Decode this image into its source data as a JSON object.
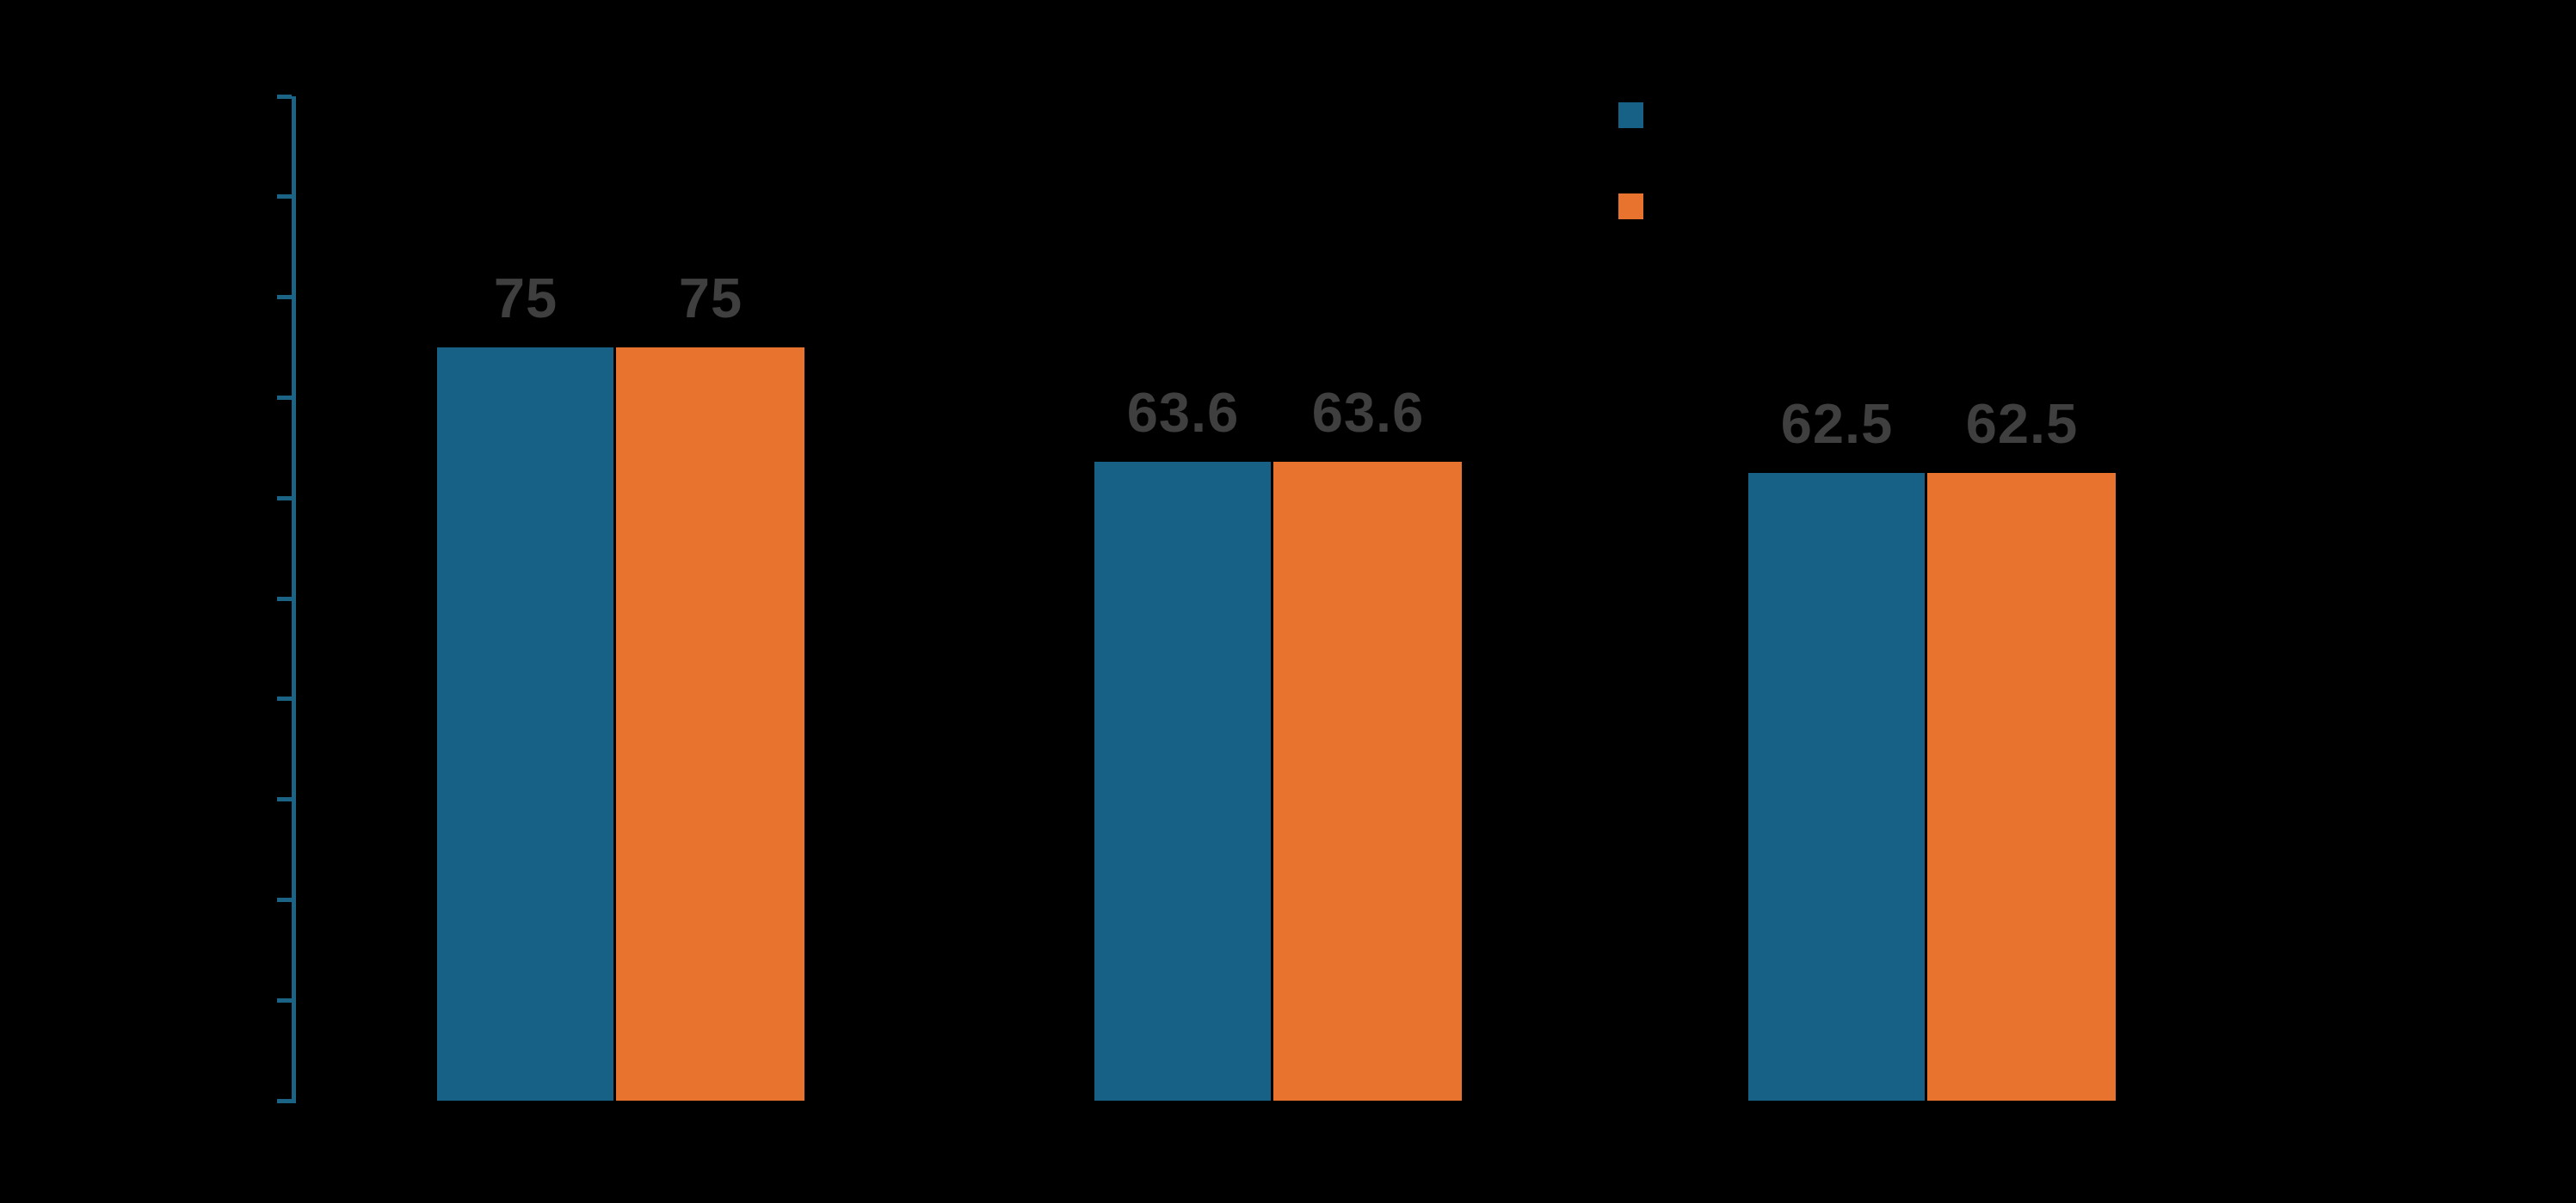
{
  "background": "#000000",
  "chart_data": {
    "type": "bar",
    "title": "",
    "categories": [
      "",
      "",
      ""
    ],
    "series": [
      {
        "name": "",
        "color": "#176086",
        "values": [
          75,
          63.6,
          62.5
        ]
      },
      {
        "name": "",
        "color": "#E7732F",
        "values": [
          75,
          63.6,
          62.5
        ]
      }
    ],
    "data_labels": [
      [
        "75",
        "63.6",
        "62.5"
      ],
      [
        "75",
        "63.6",
        "62.5"
      ]
    ],
    "data_label_color": "#3F3F3F",
    "xlabel": "",
    "ylabel": "",
    "ylim": [
      0,
      100
    ],
    "ytick_count": 11,
    "ytick_interval": 10,
    "grid": false,
    "axis_color": "#1C6485",
    "legend": {
      "position": "top-right",
      "items": [
        {
          "label": "",
          "color": "#176086"
        },
        {
          "label": "",
          "color": "#E7732F"
        }
      ]
    },
    "notes": "Title, axis tick labels, category labels and legend label text are black-on-black (not visible); only bars, gray value labels, teal axis and legend color swatches are visible."
  }
}
